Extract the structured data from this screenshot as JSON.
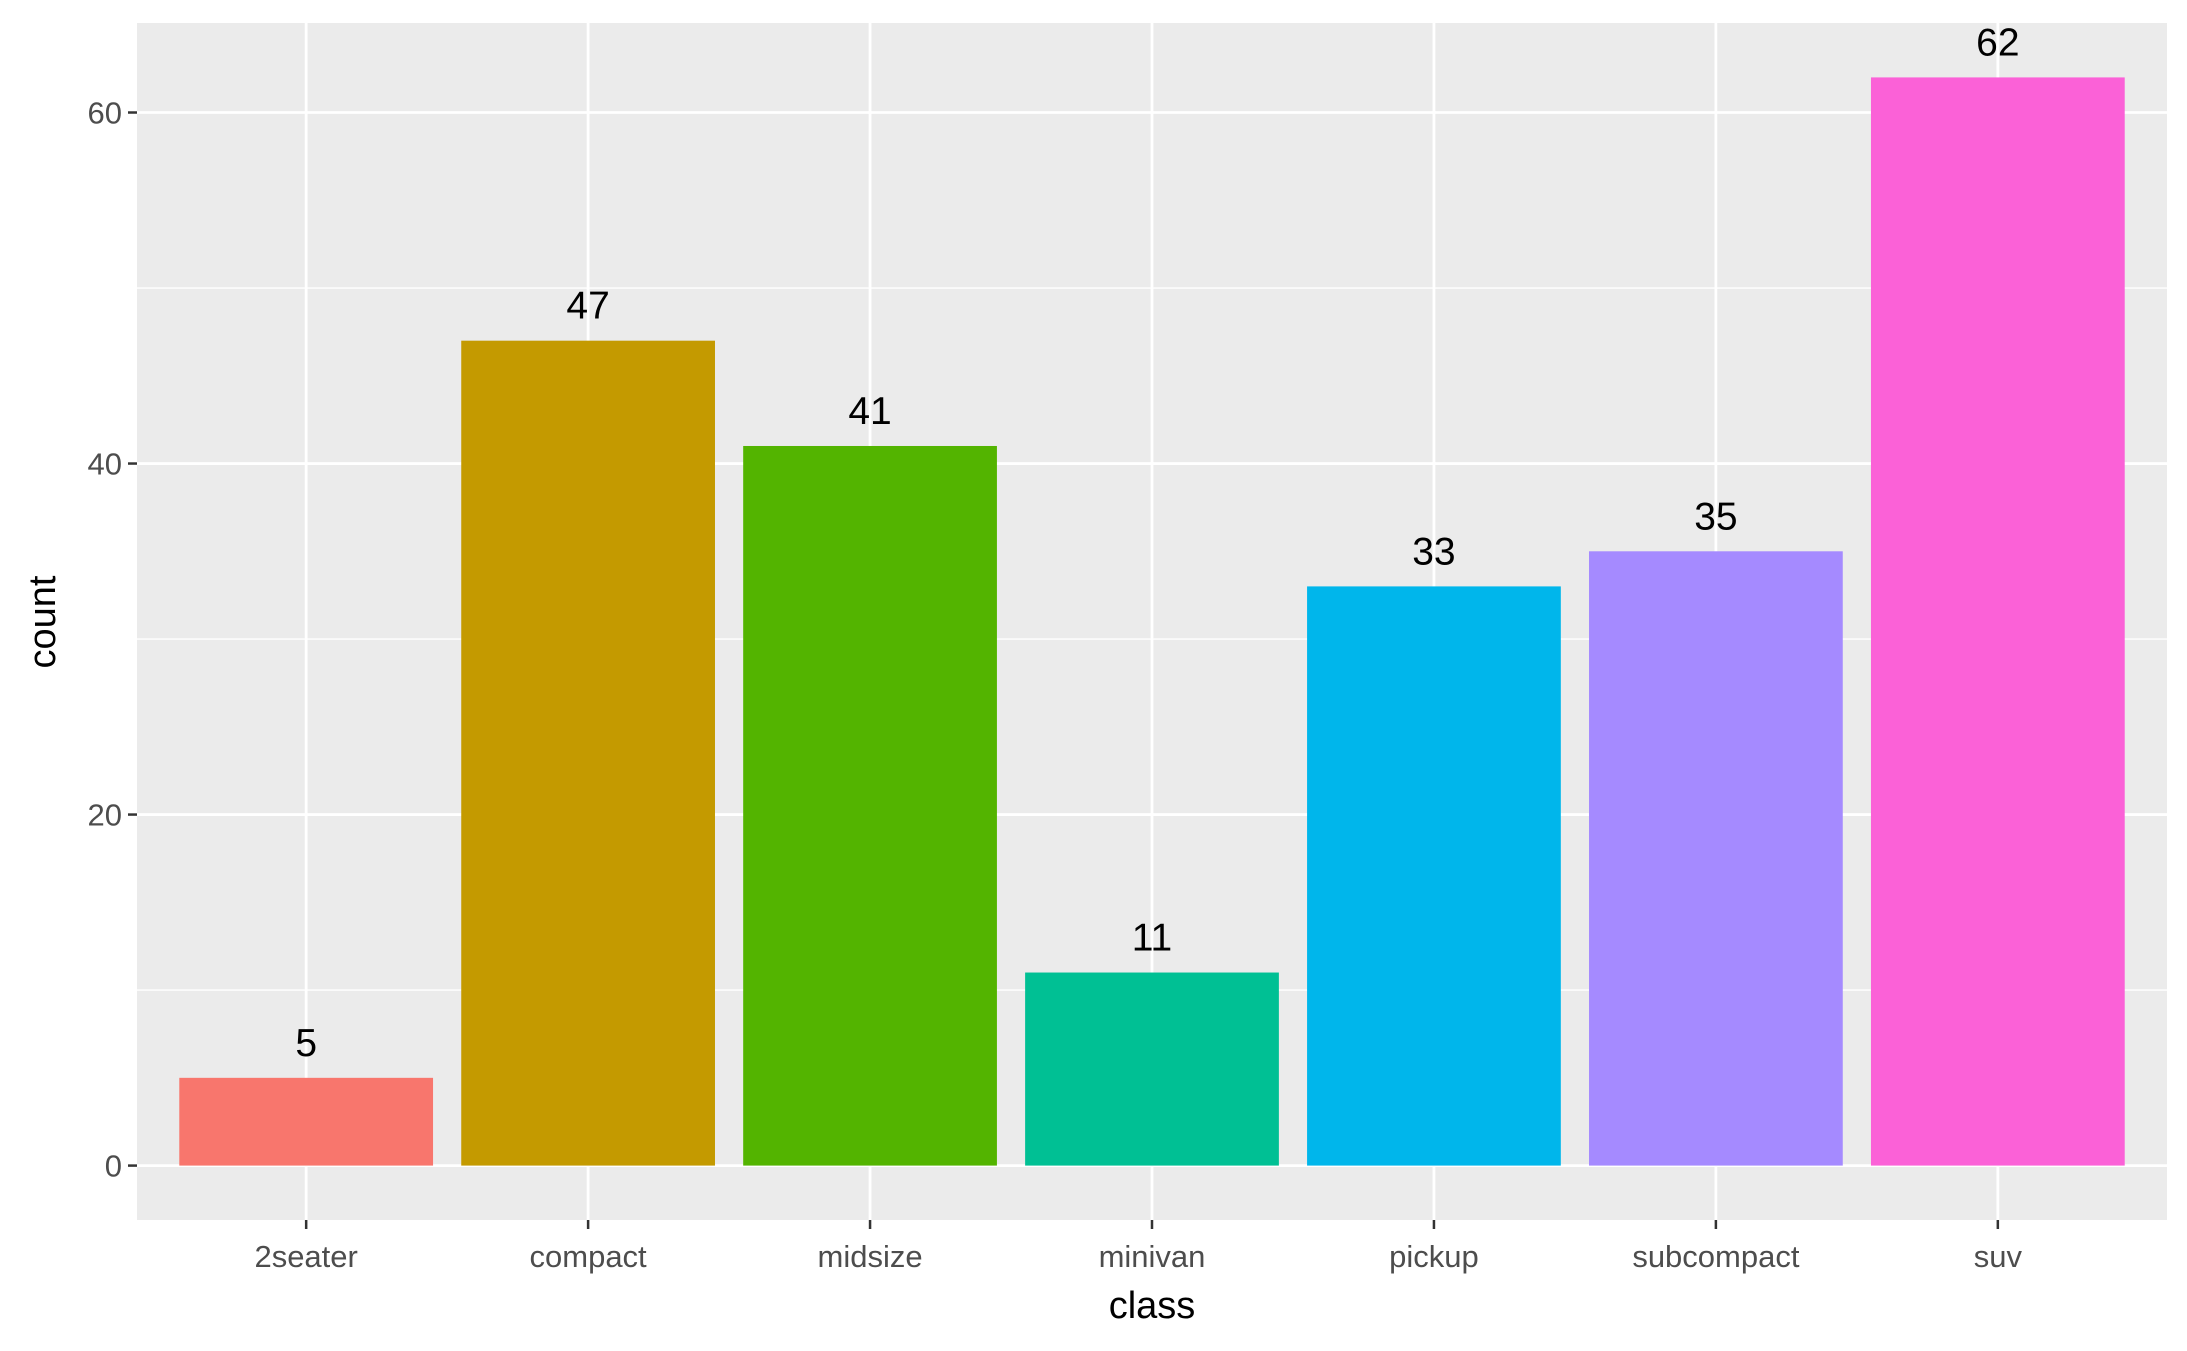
{
  "chart_data": {
    "type": "bar",
    "title": "",
    "xlabel": "class",
    "ylabel": "count",
    "categories": [
      "2seater",
      "compact",
      "midsize",
      "minivan",
      "pickup",
      "subcompact",
      "suv"
    ],
    "values": [
      5,
      47,
      41,
      11,
      33,
      35,
      62
    ],
    "data_labels": [
      "5",
      "47",
      "41",
      "11",
      "33",
      "35",
      "62"
    ],
    "bar_colors": [
      "#F8766D",
      "#C49A00",
      "#53B400",
      "#00C094",
      "#00B6EB",
      "#A58AFF",
      "#FB61D7"
    ],
    "ylim": [
      -3.1,
      65.1
    ],
    "y_ticks": [
      0,
      20,
      40,
      60
    ],
    "y_tick_labels": [
      "0",
      "20",
      "40",
      "60"
    ],
    "y_minor_ticks": [
      10,
      30,
      50
    ],
    "grid": true,
    "legend": "none",
    "panel_background": "#EBEBEB",
    "grid_color": "#FFFFFF"
  }
}
